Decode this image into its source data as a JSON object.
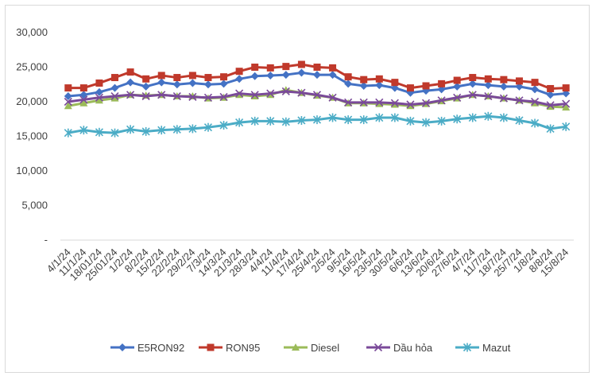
{
  "chart_data": {
    "type": "line",
    "title": "",
    "xlabel": "",
    "ylabel": "",
    "ylim": [
      0,
      30000
    ],
    "y_ticks": [
      "-",
      "5,000",
      "10,000",
      "15,000",
      "20,000",
      "25,000",
      "30,000"
    ],
    "y_tick_values": [
      0,
      5000,
      10000,
      15000,
      20000,
      25000,
      30000
    ],
    "grid": false,
    "legend_position": "bottom",
    "categories": [
      "4/1/24",
      "11/1/24",
      "18/01/24",
      "25/01/24",
      "1/2/24",
      "8/2/24",
      "15/2/24",
      "22/2/24",
      "29/2/24",
      "7/3/24",
      "14/3/24",
      "21/3/24",
      "28/3/24",
      "4/4/24",
      "11/4/24",
      "17/4/24",
      "25/4/24",
      "2/5/24",
      "9/5/24",
      "16/5/24",
      "23/5/24",
      "30/5/24",
      "6/6/24",
      "13/6/24",
      "20/6/24",
      "27/6/24",
      "4/7/24",
      "11/7/24",
      "18/7/24",
      "25/7/24",
      "1/8/24",
      "8/8/24",
      "15/8/24"
    ],
    "series": [
      {
        "name": "E5RON92",
        "color": "#4472c4",
        "marker": "diamond",
        "values": [
          20800,
          21000,
          21400,
          22000,
          22800,
          22200,
          22800,
          22500,
          22700,
          22500,
          22600,
          23300,
          23700,
          23800,
          23900,
          24200,
          23900,
          23900,
          22600,
          22300,
          22400,
          22000,
          21300,
          21600,
          21800,
          22200,
          22600,
          22400,
          22200,
          22200,
          21800,
          21000,
          21200
        ]
      },
      {
        "name": "RON95",
        "color": "#c0392b",
        "marker": "square",
        "values": [
          22000,
          22000,
          22700,
          23500,
          24300,
          23300,
          23800,
          23500,
          23800,
          23500,
          23600,
          24400,
          25000,
          24900,
          25100,
          25400,
          25000,
          24900,
          23600,
          23200,
          23300,
          22800,
          22000,
          22300,
          22600,
          23100,
          23500,
          23300,
          23200,
          23000,
          22800,
          21900,
          22000
        ]
      },
      {
        "name": "Diesel",
        "color": "#9bbb59",
        "marker": "triangle",
        "values": [
          19400,
          19800,
          20200,
          20500,
          21000,
          20900,
          21000,
          20800,
          20800,
          20500,
          20600,
          21000,
          20800,
          21000,
          21700,
          21300,
          20900,
          20600,
          19800,
          19800,
          19700,
          19600,
          19400,
          19700,
          20100,
          20500,
          21000,
          20800,
          20500,
          20200,
          19800,
          19300,
          19200
        ]
      },
      {
        "name": "Dầu hỏa",
        "color": "#7a4a99",
        "marker": "x",
        "values": [
          20000,
          20300,
          20600,
          20800,
          21000,
          20800,
          21000,
          20800,
          20700,
          20600,
          20700,
          21200,
          21000,
          21200,
          21500,
          21300,
          21000,
          20600,
          19900,
          19900,
          19900,
          19800,
          19600,
          19800,
          20200,
          20600,
          21000,
          20800,
          20500,
          20200,
          20000,
          19500,
          19700
        ]
      },
      {
        "name": "Mazut",
        "color": "#4bacc6",
        "marker": "asterisk",
        "values": [
          15500,
          15900,
          15600,
          15500,
          16000,
          15700,
          15900,
          16000,
          16100,
          16300,
          16600,
          17000,
          17200,
          17200,
          17100,
          17300,
          17400,
          17700,
          17400,
          17400,
          17700,
          17700,
          17200,
          17000,
          17200,
          17500,
          17700,
          17900,
          17700,
          17300,
          16900,
          16100,
          16400
        ]
      }
    ]
  }
}
